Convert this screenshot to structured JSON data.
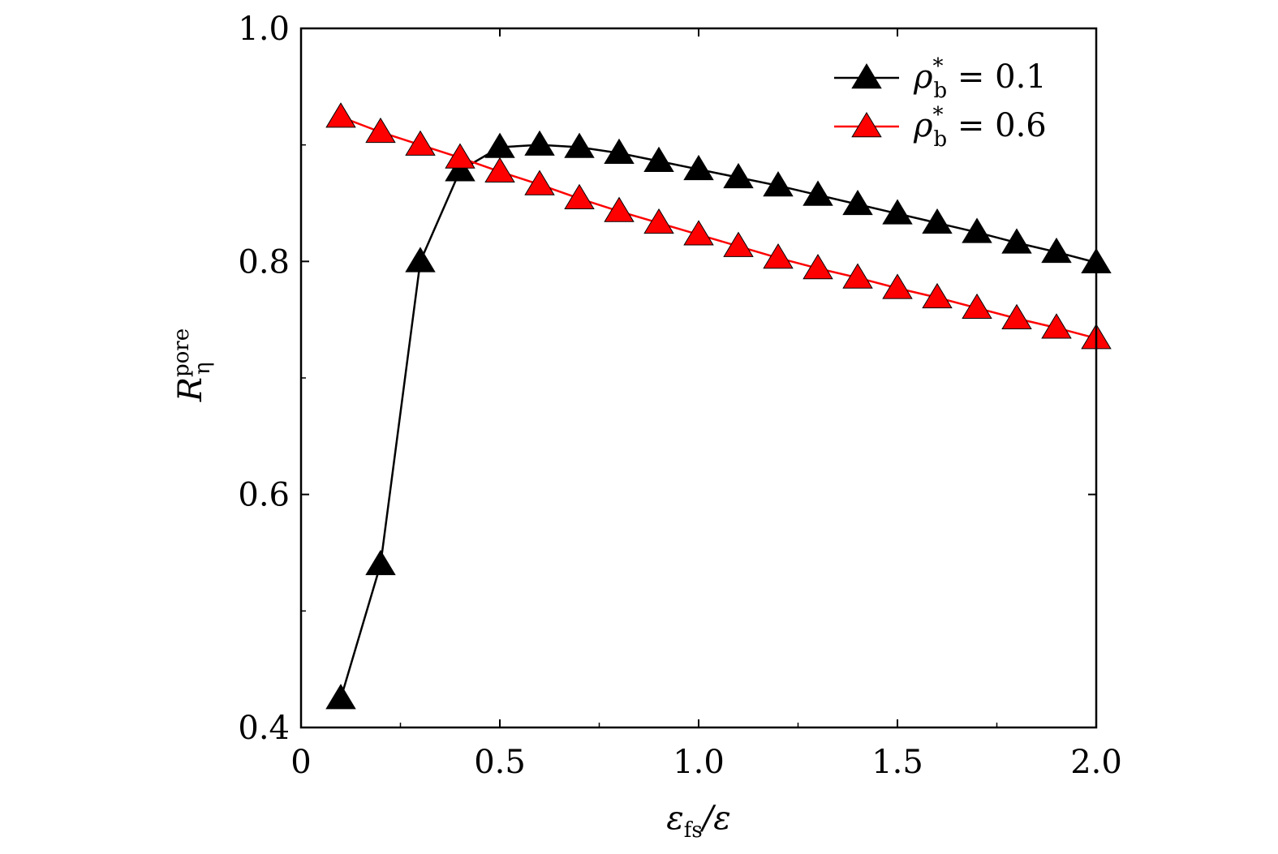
{
  "chart_data": {
    "type": "line",
    "xlabel": {
      "main": "ε",
      "sub": "fs",
      "tail": "/ε"
    },
    "ylabel": {
      "main": "R",
      "sub": "η",
      "sup": "pore"
    },
    "xlim": [
      0,
      2.0
    ],
    "ylim": [
      0.4,
      1.0
    ],
    "xticks": [
      0,
      0.5,
      1.0,
      1.5,
      2.0
    ],
    "xtick_labels": [
      "0",
      "0.5",
      "1.0",
      "1.5",
      "2.0"
    ],
    "yticks": [
      0.4,
      0.6,
      0.8,
      1.0
    ],
    "ytick_labels": [
      "0.4",
      "0.6",
      "0.8",
      "1.0"
    ],
    "grid": false,
    "legend_position": "top-right",
    "x": [
      0.1,
      0.2,
      0.3,
      0.4,
      0.5,
      0.6,
      0.7,
      0.8,
      0.9,
      1.0,
      1.1,
      1.2,
      1.3,
      1.4,
      1.5,
      1.6,
      1.7,
      1.8,
      1.9,
      2.0
    ],
    "series": [
      {
        "name": "ρb* = 0.1",
        "label_main": "ρ",
        "label_sub": "b",
        "label_sup": "*",
        "label_rest": " = 0.1",
        "color": "#000000",
        "marker": "triangle",
        "values": [
          0.425,
          0.54,
          0.8,
          0.878,
          0.898,
          0.9,
          0.898,
          0.893,
          0.886,
          0.879,
          0.872,
          0.865,
          0.857,
          0.849,
          0.841,
          0.833,
          0.825,
          0.816,
          0.808,
          0.799
        ]
      },
      {
        "name": "ρb* = 0.6",
        "label_main": "ρ",
        "label_sub": "b",
        "label_sup": "*",
        "label_rest": " = 0.6",
        "color": "#ff0000",
        "marker": "triangle",
        "values": [
          0.924,
          0.911,
          0.9,
          0.889,
          0.877,
          0.866,
          0.854,
          0.843,
          0.833,
          0.823,
          0.813,
          0.803,
          0.794,
          0.786,
          0.777,
          0.769,
          0.76,
          0.751,
          0.743,
          0.734
        ]
      }
    ]
  }
}
